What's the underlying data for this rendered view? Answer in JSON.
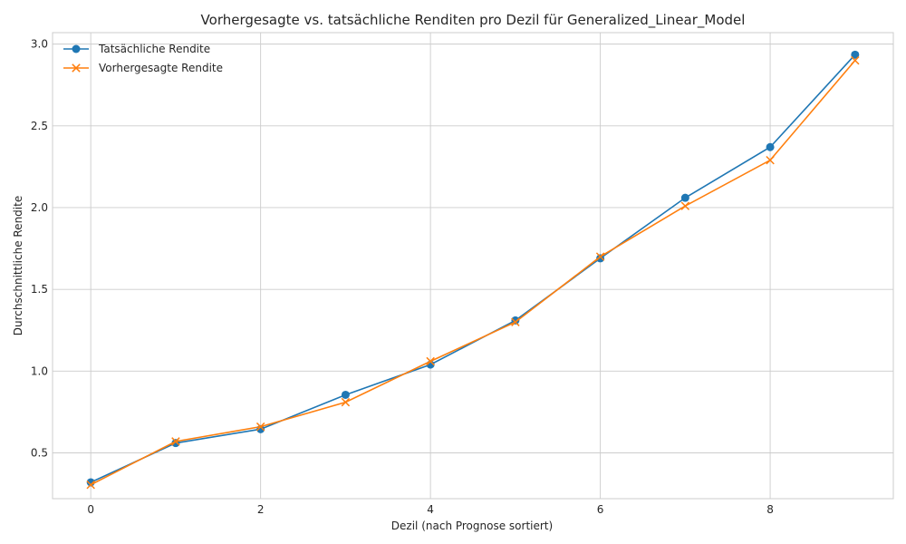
{
  "chart_data": {
    "type": "line",
    "title": "Vorhergesagte vs. tatsächliche Renditen pro Dezil für Generalized_Linear_Model",
    "xlabel": "Dezil (nach Prognose sortiert)",
    "ylabel": "Durchschnittliche Rendite",
    "xlim": [
      -0.45,
      9.45
    ],
    "ylim": [
      0.22,
      3.07
    ],
    "xticks": [
      0,
      2,
      4,
      6,
      8
    ],
    "yticks": [
      0.5,
      1.0,
      1.5,
      2.0,
      2.5,
      3.0
    ],
    "xtick_labels": [
      "0",
      "2",
      "4",
      "6",
      "8"
    ],
    "ytick_labels": [
      "0.5",
      "1.0",
      "1.5",
      "2.0",
      "2.5",
      "3.0"
    ],
    "grid": true,
    "legend_position": "top-left",
    "x": [
      0,
      1,
      2,
      3,
      4,
      5,
      6,
      7,
      8,
      9
    ],
    "series": [
      {
        "name": "Tatsächliche Rendite",
        "marker": "circle",
        "color": "#1f77b4",
        "values": [
          0.32,
          0.56,
          0.645,
          0.855,
          1.04,
          1.31,
          1.69,
          2.06,
          2.37,
          2.935
        ]
      },
      {
        "name": "Vorhergesagte Rendite",
        "marker": "x",
        "color": "#ff7f0e",
        "values": [
          0.305,
          0.57,
          0.66,
          0.81,
          1.06,
          1.3,
          1.7,
          2.01,
          2.29,
          2.9
        ]
      }
    ]
  }
}
